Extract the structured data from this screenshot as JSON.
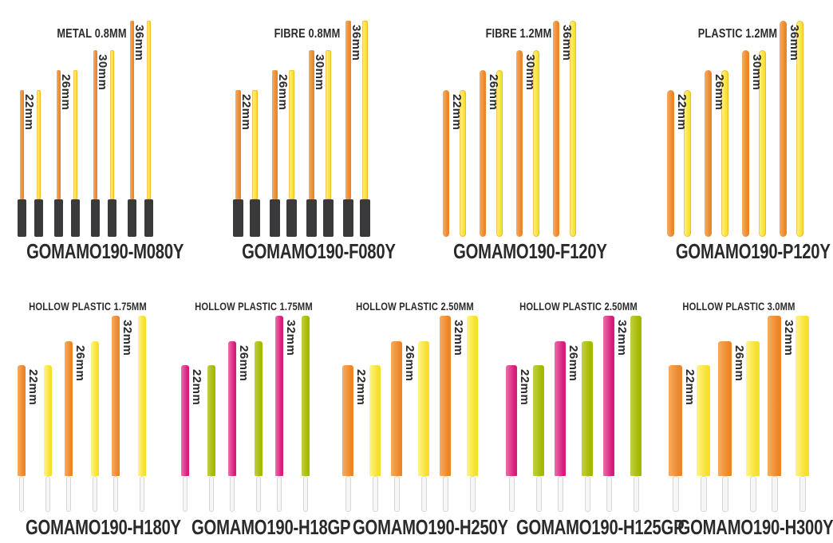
{
  "page": {
    "background": "#ffffff"
  },
  "palette": {
    "orange": {
      "light": "#F6AC63",
      "dark": "#EC8526"
    },
    "yellow": {
      "light": "#FEF48C",
      "dark": "#F7DF2B"
    },
    "pink": {
      "light": "#EA6FAB",
      "dark": "#D61B7B"
    },
    "green": {
      "light": "#C3CF44",
      "dark": "#A3B900"
    },
    "black_base": "#3A3A3C",
    "white_base": "#F6F6F6",
    "white_base_border": "#D7D7D7",
    "text": "#2A2A2A"
  },
  "size_unit": "mm",
  "groups": [
    {
      "title": "METAL 0.8MM",
      "code": "GOMAMO190-M080Y",
      "sizes": [
        "22mm",
        "26mm",
        "30mm",
        "36mm"
      ],
      "pair_colors": [
        "orange",
        "yellow"
      ],
      "base": "black"
    },
    {
      "title": "FIBRE 0.8MM",
      "code": "GOMAMO190-F080Y",
      "sizes": [
        "22mm",
        "26mm",
        "30mm",
        "36mm"
      ],
      "pair_colors": [
        "orange",
        "yellow"
      ],
      "base": "black"
    },
    {
      "title": "FIBRE 1.2MM",
      "code": "GOMAMO190-F120Y",
      "sizes": [
        "22mm",
        "26mm",
        "30mm",
        "36mm"
      ],
      "pair_colors": [
        "orange",
        "yellow"
      ],
      "base": "none"
    },
    {
      "title": "PLASTIC 1.2MM",
      "code": "GOMAMO190-P120Y",
      "sizes": [
        "22mm",
        "26mm",
        "30mm",
        "36mm"
      ],
      "pair_colors": [
        "orange",
        "yellow"
      ],
      "base": "none"
    },
    {
      "title": "HOLLOW PLASTIC 1.75MM",
      "code": "GOMAMO190-H180Y",
      "sizes": [
        "22mm",
        "26mm",
        "32mm"
      ],
      "pair_colors": [
        "orange",
        "yellow"
      ],
      "base": "white"
    },
    {
      "title": "HOLLOW PLASTIC 1.75MM",
      "code": "GOMAMO190-H18GP",
      "sizes": [
        "22mm",
        "26mm",
        "32mm"
      ],
      "pair_colors": [
        "pink",
        "green"
      ],
      "base": "white"
    },
    {
      "title": "HOLLOW PLASTIC 2.50MM",
      "code": "GOMAMO190-H250Y",
      "sizes": [
        "22mm",
        "26mm",
        "32mm"
      ],
      "pair_colors": [
        "orange",
        "yellow"
      ],
      "base": "white"
    },
    {
      "title": "HOLLOW PLASTIC 2.50MM",
      "code": "GOMAMO190-H125GP",
      "sizes": [
        "22mm",
        "26mm",
        "32mm"
      ],
      "pair_colors": [
        "pink",
        "green"
      ],
      "base": "white"
    },
    {
      "title": "HOLLOW PLASTIC 3.0MM",
      "code": "GOMAMO190-H300Y",
      "sizes": [
        "22mm",
        "26mm",
        "32mm"
      ],
      "pair_colors": [
        "orange",
        "yellow"
      ],
      "base": "white"
    }
  ]
}
